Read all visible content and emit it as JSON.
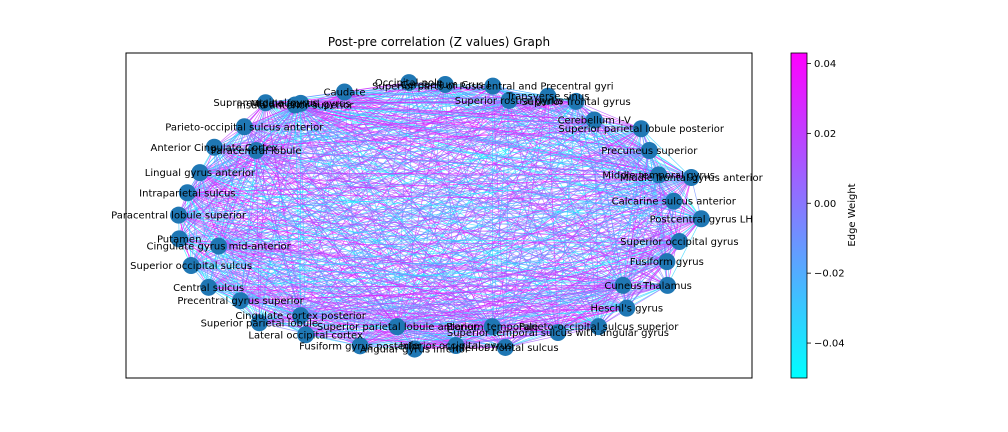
{
  "chart_data": {
    "type": "network",
    "title": "Post-pre correlation (Z values) Graph",
    "colorbar": {
      "label": "Edge Weight",
      "range": [
        -0.05,
        0.043
      ],
      "ticks": [
        "0.04",
        "0.02",
        "0.00",
        "−0.02",
        "−0.04"
      ],
      "tick_values": [
        0.04,
        0.02,
        0.0,
        -0.02,
        -0.04
      ],
      "colormap": [
        "#00ffff",
        "#ff00ff"
      ]
    },
    "edges": "dense, nearly complete graph; edge colors span the colormap (cyan to magenta)",
    "nodes": [
      {
        "label": "Occipital pole",
        "x": 0.452,
        "y": 0.909
      },
      {
        "label": "Cerebellum Crus I",
        "x": 0.51,
        "y": 0.903
      },
      {
        "label": "Superior parts of Postcentral and Precentral gyri",
        "x": 0.586,
        "y": 0.898
      },
      {
        "label": "Caudate",
        "x": 0.349,
        "y": 0.88
      },
      {
        "label": "Transverse sinus",
        "x": 0.674,
        "y": 0.867
      },
      {
        "label": "Superior rostral gyrus",
        "x": 0.612,
        "y": 0.854
      },
      {
        "label": "Superior frontal gyrus",
        "x": 0.719,
        "y": 0.851
      },
      {
        "label": "Supramarginal gyrus",
        "x": 0.223,
        "y": 0.847
      },
      {
        "label": "Insula anterior superior",
        "x": 0.27,
        "y": 0.84
      },
      {
        "label": "Middle frontal gyrus",
        "x": 0.279,
        "y": 0.845
      },
      {
        "label": "Cerebellum I-V",
        "x": 0.748,
        "y": 0.794
      },
      {
        "label": "Superior parietal lobule posterior",
        "x": 0.823,
        "y": 0.767
      },
      {
        "label": "Parieto-occipital sulcus anterior",
        "x": 0.189,
        "y": 0.773
      },
      {
        "label": "Anterior Cingulate Cortex",
        "x": 0.141,
        "y": 0.71
      },
      {
        "label": "Paracentral lobule",
        "x": 0.208,
        "y": 0.7
      },
      {
        "label": "Precuneus superior",
        "x": 0.836,
        "y": 0.7
      },
      {
        "label": "Lingual gyrus anterior",
        "x": 0.118,
        "y": 0.632
      },
      {
        "label": "Middle temporal gyrus",
        "x": 0.851,
        "y": 0.625
      },
      {
        "label": "Middle frontal gyrus anterior",
        "x": 0.903,
        "y": 0.617
      },
      {
        "label": "Intraparietal sulcus",
        "x": 0.098,
        "y": 0.57
      },
      {
        "label": "Calcarine sulcus anterior",
        "x": 0.875,
        "y": 0.544
      },
      {
        "label": "Paracentral lobule superior",
        "x": 0.084,
        "y": 0.501
      },
      {
        "label": "Postcentral gyrus LH",
        "x": 0.919,
        "y": 0.49
      },
      {
        "label": "Putamen",
        "x": 0.085,
        "y": 0.428
      },
      {
        "label": "Cingulate gyrus mid-anterior",
        "x": 0.148,
        "y": 0.406
      },
      {
        "label": "Superior occipital gyrus",
        "x": 0.884,
        "y": 0.42
      },
      {
        "label": "Superior occipital sulcus",
        "x": 0.104,
        "y": 0.346
      },
      {
        "label": "Fusiform gyrus",
        "x": 0.864,
        "y": 0.358
      },
      {
        "label": "Central sulcus",
        "x": 0.132,
        "y": 0.279
      },
      {
        "label": "Cuneus",
        "x": 0.794,
        "y": 0.285
      },
      {
        "label": "Thalamus",
        "x": 0.865,
        "y": 0.285
      },
      {
        "label": "Precentral gyrus superior",
        "x": 0.183,
        "y": 0.238
      },
      {
        "label": "Heschl's gyrus",
        "x": 0.8,
        "y": 0.215
      },
      {
        "label": "Cingulate cortex posterior",
        "x": 0.279,
        "y": 0.192
      },
      {
        "label": "Superior parietal lobule",
        "x": 0.213,
        "y": 0.17
      },
      {
        "label": "Superior parietal lobule anterior",
        "x": 0.433,
        "y": 0.158
      },
      {
        "label": "Planum temporale",
        "x": 0.585,
        "y": 0.158
      },
      {
        "label": "Parieto-occipital sulcus superior",
        "x": 0.755,
        "y": 0.158
      },
      {
        "label": "Lateral occipital cortex",
        "x": 0.287,
        "y": 0.133
      },
      {
        "label": "Superior temporal sulcus with angular gyrus",
        "x": 0.69,
        "y": 0.14
      },
      {
        "label": "Fusiform gyrus posterior",
        "x": 0.374,
        "y": 0.099
      },
      {
        "label": "Angular gyrus inferior",
        "x": 0.461,
        "y": 0.089
      },
      {
        "label": "Inferior occipital gyrus",
        "x": 0.527,
        "y": 0.1
      },
      {
        "label": "Inferior frontal sulcus",
        "x": 0.606,
        "y": 0.094
      }
    ]
  }
}
